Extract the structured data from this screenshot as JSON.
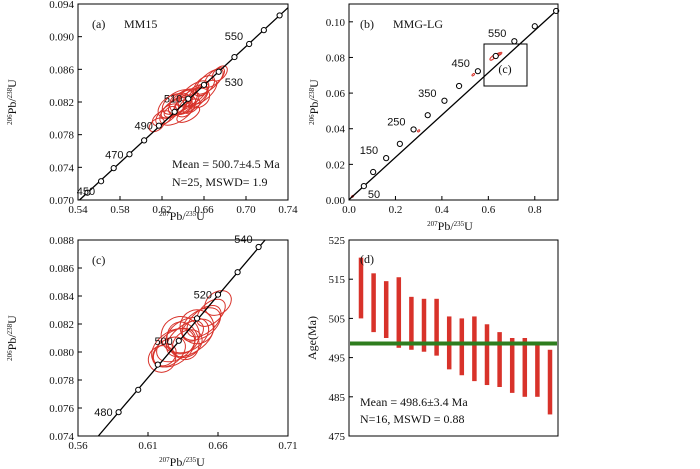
{
  "chart_data": [
    {
      "id": "a",
      "type": "scatter",
      "panel_label": "(a)",
      "title": "MM15",
      "xlabel": "207Pb/235U",
      "ylabel": "206Pb/238U",
      "xlim": [
        0.54,
        0.74
      ],
      "ylim": [
        0.07,
        0.094
      ],
      "xticks": [
        "0.54",
        "0.58",
        "0.62",
        "0.66",
        "0.70",
        "0.74"
      ],
      "yticks": [
        "0.070",
        "0.074",
        "0.078",
        "0.082",
        "0.086",
        "0.090",
        "0.094"
      ],
      "concordia_points": [
        {
          "x": 0.549,
          "y": 0.0709
        },
        {
          "x": 0.562,
          "y": 0.0723,
          "age": "450"
        },
        {
          "x": 0.574,
          "y": 0.0739
        },
        {
          "x": 0.589,
          "y": 0.0756,
          "age": "470"
        },
        {
          "x": 0.603,
          "y": 0.0773
        },
        {
          "x": 0.617,
          "y": 0.0791,
          "age": "490"
        },
        {
          "x": 0.632,
          "y": 0.0808
        },
        {
          "x": 0.645,
          "y": 0.0824,
          "age": "510"
        },
        {
          "x": 0.66,
          "y": 0.0841
        },
        {
          "x": 0.674,
          "y": 0.0857,
          "age": "530"
        },
        {
          "x": 0.689,
          "y": 0.0875
        },
        {
          "x": 0.703,
          "y": 0.0891,
          "age": "550"
        },
        {
          "x": 0.717,
          "y": 0.0908
        },
        {
          "x": 0.732,
          "y": 0.0926
        }
      ],
      "ellipses": [
        {
          "x": 0.63,
          "y": 0.0815,
          "rx": 0.028,
          "ry": 0.0022,
          "angle": 35
        },
        {
          "x": 0.64,
          "y": 0.082,
          "rx": 0.03,
          "ry": 0.002,
          "angle": 40
        },
        {
          "x": 0.65,
          "y": 0.083,
          "rx": 0.032,
          "ry": 0.0018,
          "angle": 38
        },
        {
          "x": 0.66,
          "y": 0.084,
          "rx": 0.022,
          "ry": 0.0016,
          "angle": 42
        },
        {
          "x": 0.62,
          "y": 0.08,
          "rx": 0.018,
          "ry": 0.0014,
          "angle": 30
        },
        {
          "x": 0.635,
          "y": 0.081,
          "rx": 0.036,
          "ry": 0.0024,
          "angle": 36
        },
        {
          "x": 0.645,
          "y": 0.0818,
          "rx": 0.025,
          "ry": 0.0012,
          "angle": 45
        },
        {
          "x": 0.655,
          "y": 0.0825,
          "rx": 0.02,
          "ry": 0.002,
          "angle": 32
        },
        {
          "x": 0.625,
          "y": 0.0805,
          "rx": 0.024,
          "ry": 0.0015,
          "angle": 40
        },
        {
          "x": 0.67,
          "y": 0.085,
          "rx": 0.022,
          "ry": 0.0013,
          "angle": 44
        },
        {
          "x": 0.64,
          "y": 0.0812,
          "rx": 0.016,
          "ry": 0.0018,
          "angle": 25
        },
        {
          "x": 0.648,
          "y": 0.0822,
          "rx": 0.034,
          "ry": 0.0019,
          "angle": 37
        },
        {
          "x": 0.615,
          "y": 0.0792,
          "rx": 0.015,
          "ry": 0.0012,
          "angle": 38
        },
        {
          "x": 0.66,
          "y": 0.0832,
          "rx": 0.028,
          "ry": 0.0015,
          "angle": 42
        },
        {
          "x": 0.638,
          "y": 0.0818,
          "rx": 0.02,
          "ry": 0.0023,
          "angle": 28
        },
        {
          "x": 0.675,
          "y": 0.0855,
          "rx": 0.016,
          "ry": 0.0012,
          "angle": 45
        },
        {
          "x": 0.632,
          "y": 0.0813,
          "rx": 0.027,
          "ry": 0.0014,
          "angle": 34
        },
        {
          "x": 0.652,
          "y": 0.0828,
          "rx": 0.025,
          "ry": 0.0017,
          "angle": 40
        },
        {
          "x": 0.645,
          "y": 0.0805,
          "rx": 0.022,
          "ry": 0.0013,
          "angle": 30
        },
        {
          "x": 0.665,
          "y": 0.0845,
          "rx": 0.03,
          "ry": 0.0016,
          "angle": 41
        },
        {
          "x": 0.628,
          "y": 0.0808,
          "rx": 0.012,
          "ry": 0.001,
          "angle": 35
        },
        {
          "x": 0.642,
          "y": 0.0825,
          "rx": 0.018,
          "ry": 0.0013,
          "angle": 38
        },
        {
          "x": 0.658,
          "y": 0.0835,
          "rx": 0.014,
          "ry": 0.0011,
          "angle": 42
        },
        {
          "x": 0.635,
          "y": 0.082,
          "rx": 0.03,
          "ry": 0.0021,
          "angle": 33
        },
        {
          "x": 0.648,
          "y": 0.0815,
          "rx": 0.017,
          "ry": 0.0012,
          "angle": 36
        }
      ],
      "annotations": [
        "Mean = 500.7±4.5 Ma",
        "N=25, MSWD= 1.9"
      ]
    },
    {
      "id": "b",
      "type": "scatter",
      "panel_label": "(b)",
      "title": "MMG-LG",
      "inset_label": "(c)",
      "xlabel": "207Pb/235U",
      "ylabel": "206Pb/238U",
      "xlim": [
        0.0,
        0.9
      ],
      "ylim": [
        0.0,
        0.11
      ],
      "xticks": [
        "0.0",
        "0.2",
        "0.4",
        "0.6",
        "0.8"
      ],
      "yticks": [
        "0.00",
        "0.02",
        "0.04",
        "0.06",
        "0.08",
        "0.10"
      ],
      "concordia_points": [
        {
          "x": 0.064,
          "y": 0.0078,
          "age": "50"
        },
        {
          "x": 0.104,
          "y": 0.0157
        },
        {
          "x": 0.16,
          "y": 0.0235,
          "age": "150"
        },
        {
          "x": 0.219,
          "y": 0.0315
        },
        {
          "x": 0.278,
          "y": 0.0396,
          "age": "250"
        },
        {
          "x": 0.339,
          "y": 0.0476
        },
        {
          "x": 0.411,
          "y": 0.0557,
          "age": "350"
        },
        {
          "x": 0.474,
          "y": 0.064
        },
        {
          "x": 0.555,
          "y": 0.0723,
          "age": "450"
        },
        {
          "x": 0.632,
          "y": 0.0808
        },
        {
          "x": 0.712,
          "y": 0.0891,
          "age": "550"
        },
        {
          "x": 0.8,
          "y": 0.0975
        },
        {
          "x": 0.892,
          "y": 0.1061
        }
      ],
      "ellipses": [
        {
          "x": 0.62,
          "y": 0.08,
          "rx": 0.03,
          "ry": 0.0015,
          "angle": 40
        },
        {
          "x": 0.64,
          "y": 0.0815,
          "rx": 0.025,
          "ry": 0.0012,
          "angle": 35
        },
        {
          "x": 0.63,
          "y": 0.0808,
          "rx": 0.02,
          "ry": 0.0014,
          "angle": 45
        },
        {
          "x": 0.65,
          "y": 0.082,
          "rx": 0.018,
          "ry": 0.001,
          "angle": 38
        },
        {
          "x": 0.535,
          "y": 0.0703,
          "rx": 0.012,
          "ry": 0.0008,
          "angle": 40
        },
        {
          "x": 0.3,
          "y": 0.0388,
          "rx": 0.01,
          "ry": 0.0008,
          "angle": 40
        },
        {
          "x": 0.015,
          "y": 0.002,
          "rx": 0.008,
          "ry": 0.0006,
          "angle": 40
        }
      ]
    },
    {
      "id": "c",
      "type": "scatter",
      "panel_label": "(c)",
      "xlabel": "207Pb/235U",
      "ylabel": "206Pb/238U",
      "xlim": [
        0.56,
        0.71
      ],
      "ylim": [
        0.074,
        0.088
      ],
      "xticks": [
        "0.56",
        "0.61",
        "0.66",
        "0.71"
      ],
      "yticks": [
        "0.074",
        "0.076",
        "0.078",
        "0.080",
        "0.082",
        "0.084",
        "0.086",
        "0.088"
      ],
      "concordia_points": [
        {
          "x": 0.589,
          "y": 0.0757,
          "age": "480"
        },
        {
          "x": 0.603,
          "y": 0.0773
        },
        {
          "x": 0.617,
          "y": 0.0791
        },
        {
          "x": 0.632,
          "y": 0.0808,
          "age": "500"
        },
        {
          "x": 0.645,
          "y": 0.0824
        },
        {
          "x": 0.66,
          "y": 0.0841,
          "age": "520"
        },
        {
          "x": 0.674,
          "y": 0.0857
        },
        {
          "x": 0.689,
          "y": 0.0875,
          "age": "540"
        },
        {
          "x": 0.703,
          "y": 0.0891
        }
      ],
      "ellipses": [
        {
          "x": 0.63,
          "y": 0.0805,
          "rx": 0.028,
          "ry": 0.0018,
          "angle": 35
        },
        {
          "x": 0.638,
          "y": 0.0812,
          "rx": 0.03,
          "ry": 0.002,
          "angle": 30
        },
        {
          "x": 0.645,
          "y": 0.0818,
          "rx": 0.022,
          "ry": 0.0022,
          "angle": 25
        },
        {
          "x": 0.625,
          "y": 0.08,
          "rx": 0.024,
          "ry": 0.0016,
          "angle": 38
        },
        {
          "x": 0.64,
          "y": 0.081,
          "rx": 0.034,
          "ry": 0.0019,
          "angle": 33
        },
        {
          "x": 0.65,
          "y": 0.0822,
          "rx": 0.026,
          "ry": 0.0015,
          "angle": 40
        },
        {
          "x": 0.62,
          "y": 0.0795,
          "rx": 0.018,
          "ry": 0.0017,
          "angle": 30
        },
        {
          "x": 0.635,
          "y": 0.0808,
          "rx": 0.02,
          "ry": 0.0025,
          "angle": 22
        },
        {
          "x": 0.655,
          "y": 0.0828,
          "rx": 0.022,
          "ry": 0.0013,
          "angle": 42
        },
        {
          "x": 0.628,
          "y": 0.0803,
          "rx": 0.031,
          "ry": 0.0021,
          "angle": 36
        },
        {
          "x": 0.642,
          "y": 0.0815,
          "rx": 0.015,
          "ry": 0.0012,
          "angle": 40
        },
        {
          "x": 0.66,
          "y": 0.0835,
          "rx": 0.019,
          "ry": 0.0014,
          "angle": 38
        },
        {
          "x": 0.633,
          "y": 0.0812,
          "rx": 0.025,
          "ry": 0.0024,
          "angle": 28
        },
        {
          "x": 0.648,
          "y": 0.082,
          "rx": 0.028,
          "ry": 0.0017,
          "angle": 34
        },
        {
          "x": 0.622,
          "y": 0.0798,
          "rx": 0.016,
          "ry": 0.0013,
          "angle": 40
        },
        {
          "x": 0.638,
          "y": 0.0806,
          "rx": 0.021,
          "ry": 0.0016,
          "angle": 37
        }
      ]
    },
    {
      "id": "d",
      "type": "bar",
      "panel_label": "(d)",
      "ylabel": "Age(Ma)",
      "ylim": [
        475,
        525
      ],
      "yticks": [
        "525",
        "515",
        "505",
        "495",
        "485",
        "475"
      ],
      "mean": 498.6,
      "bars": [
        {
          "low": 505.0,
          "high": 520.5
        },
        {
          "low": 501.5,
          "high": 516.5
        },
        {
          "low": 500.0,
          "high": 514.5
        },
        {
          "low": 497.5,
          "high": 515.5
        },
        {
          "low": 497.0,
          "high": 510.5
        },
        {
          "low": 496.5,
          "high": 510.0
        },
        {
          "low": 495.5,
          "high": 510.0
        },
        {
          "low": 492.0,
          "high": 505.5
        },
        {
          "low": 490.5,
          "high": 505.0
        },
        {
          "low": 489.0,
          "high": 505.5
        },
        {
          "low": 488.0,
          "high": 503.5
        },
        {
          "low": 487.5,
          "high": 501.5
        },
        {
          "low": 486.0,
          "high": 500.0
        },
        {
          "low": 485.0,
          "high": 500.0
        },
        {
          "low": 485.0,
          "high": 498.5
        },
        {
          "low": 480.5,
          "high": 497.0
        }
      ],
      "annotations": [
        "Mean = 498.6±3.4 Ma",
        "N=16, MSWD = 0.88"
      ]
    }
  ]
}
